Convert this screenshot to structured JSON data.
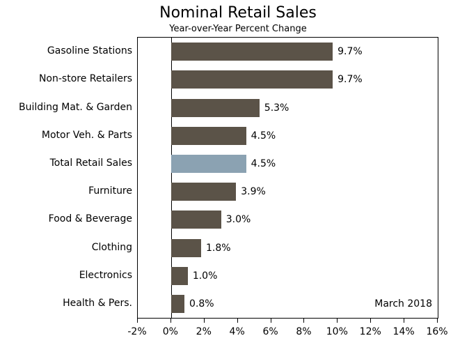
{
  "chart_data": {
    "type": "bar",
    "orientation": "horizontal",
    "title": "Nominal Retail Sales",
    "subtitle": "Year-over-Year Percent Change",
    "categories": [
      "Gasoline Stations",
      "Non-store Retailers",
      "Building Mat. & Garden",
      "Motor Veh. & Parts",
      "Total Retail Sales",
      "Furniture",
      "Food & Beverage",
      "Clothing",
      "Electronics",
      "Health & Pers."
    ],
    "values": [
      9.7,
      9.7,
      5.3,
      4.5,
      4.5,
      3.9,
      3.0,
      1.8,
      1.0,
      0.8
    ],
    "value_labels": [
      "9.7%",
      "9.7%",
      "5.3%",
      "4.5%",
      "4.5%",
      "3.9%",
      "3.0%",
      "1.8%",
      "1.0%",
      "0.8%"
    ],
    "highlight_index": 4,
    "annotation": "March 2018",
    "x_tick_labels": [
      "-2%",
      "0%",
      "2%",
      "4%",
      "6%",
      "8%",
      "10%",
      "12%",
      "14%",
      "16%"
    ],
    "x_tick_values": [
      -2,
      0,
      2,
      4,
      6,
      8,
      10,
      12,
      14,
      16
    ],
    "xlim": [
      -2,
      16
    ],
    "grid": "off",
    "legend": "none",
    "colors": {
      "bar": "#5b5348",
      "highlight": "#8ba2b2",
      "axis": "#000000",
      "text": "#000000",
      "background": "#ffffff"
    }
  }
}
